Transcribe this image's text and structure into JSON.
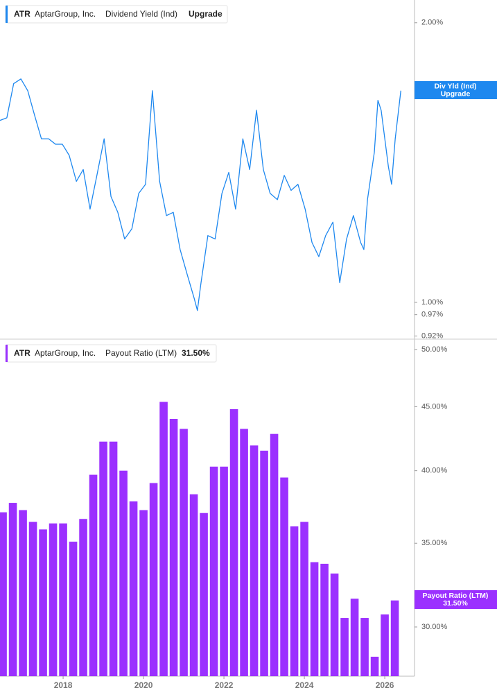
{
  "chart_data": [
    {
      "type": "line",
      "ticker": "ATR",
      "company": "AptarGroup, Inc.",
      "title": "Dividend Yield (Ind)",
      "status": "Upgrade",
      "tag_label": "Div Yld (Ind)",
      "color": "#1e88ef",
      "log": true,
      "x": [
        2016.43,
        2016.6,
        2016.77,
        2016.95,
        2017.12,
        2017.29,
        2017.46,
        2017.64,
        2017.81,
        2017.98,
        2018.15,
        2018.33,
        2018.5,
        2018.67,
        2018.84,
        2019.02,
        2019.19,
        2019.36,
        2019.53,
        2019.71,
        2019.88,
        2020.05,
        2020.22,
        2020.4,
        2020.57,
        2020.74,
        2020.91,
        2021.09,
        2021.26,
        2021.34,
        2021.43,
        2021.6,
        2021.78,
        2021.95,
        2022.12,
        2022.29,
        2022.47,
        2022.64,
        2022.81,
        2022.98,
        2023.15,
        2023.33,
        2023.5,
        2023.67,
        2023.84,
        2024.02,
        2024.19,
        2024.36,
        2024.53,
        2024.71,
        2024.88,
        2025.05,
        2025.22,
        2025.4,
        2025.48,
        2025.57,
        2025.74,
        2025.83,
        2025.91,
        2026.09,
        2026.17,
        2026.26,
        2026.4
      ],
      "values": [
        1.57,
        1.58,
        1.72,
        1.74,
        1.69,
        1.59,
        1.5,
        1.5,
        1.48,
        1.48,
        1.44,
        1.35,
        1.39,
        1.26,
        1.37,
        1.5,
        1.3,
        1.25,
        1.17,
        1.2,
        1.31,
        1.34,
        1.69,
        1.35,
        1.24,
        1.25,
        1.14,
        1.07,
        1.01,
        0.98,
        1.05,
        1.18,
        1.17,
        1.31,
        1.38,
        1.26,
        1.5,
        1.39,
        1.61,
        1.39,
        1.31,
        1.29,
        1.37,
        1.32,
        1.34,
        1.26,
        1.16,
        1.12,
        1.18,
        1.22,
        1.05,
        1.17,
        1.24,
        1.16,
        1.14,
        1.29,
        1.45,
        1.65,
        1.61,
        1.4,
        1.34,
        1.5,
        1.69
      ],
      "xlim": [
        2016.43,
        2026.74
      ],
      "ylim": [
        0.916,
        2.116
      ],
      "yticks": [
        {
          "value": 2,
          "label": "2.00%"
        },
        {
          "value": 1,
          "label": "1.00%"
        },
        {
          "value": 0.97,
          "label": "0.97%"
        },
        {
          "value": 0.92,
          "label": "0.92%"
        }
      ]
    },
    {
      "type": "bar",
      "ticker": "ATR",
      "company": "AptarGroup, Inc.",
      "title": "Payout Ratio (LTM)",
      "color": "#9b30ff",
      "log": true,
      "x": [
        2016.5,
        2016.75,
        2017,
        2017.25,
        2017.5,
        2017.75,
        2018,
        2018.25,
        2018.5,
        2018.75,
        2019,
        2019.25,
        2019.5,
        2019.75,
        2020,
        2020.25,
        2020.5,
        2020.75,
        2021,
        2021.25,
        2021.5,
        2021.75,
        2022,
        2022.25,
        2022.5,
        2022.75,
        2023,
        2023.25,
        2023.5,
        2023.75,
        2024,
        2024.25,
        2024.5,
        2024.75,
        2025,
        2025.25,
        2025.5,
        2025.75,
        2026,
        2026.25
      ],
      "values": [
        37.05,
        37.7,
        37.2,
        36.4,
        35.9,
        36.3,
        36.3,
        35.1,
        36.6,
        39.7,
        42.2,
        42.2,
        40.0,
        37.8,
        37.2,
        39.1,
        45.4,
        44.0,
        43.2,
        38.3,
        37.0,
        40.3,
        40.3,
        44.8,
        43.2,
        41.9,
        41.5,
        42.8,
        39.5,
        36.1,
        36.4,
        33.8,
        33.7,
        33.1,
        30.5,
        31.6,
        30.5,
        28.4,
        30.7,
        31.5
      ],
      "value_labels": [
        null,
        null,
        null,
        null,
        null,
        null,
        null,
        null,
        null,
        null,
        null,
        null,
        null,
        null,
        null,
        null,
        null,
        null,
        null,
        null,
        null,
        null,
        null,
        null,
        null,
        null,
        null,
        null,
        null,
        null,
        null,
        null,
        null,
        null,
        null,
        null,
        null,
        null,
        null,
        "31.50%"
      ],
      "xlim": [
        2016.43,
        2026.74
      ],
      "ylim": [
        27.4,
        50.7
      ],
      "xticks": [
        2018,
        2020,
        2022,
        2024,
        2026
      ],
      "yticks": [
        {
          "value": 50,
          "label": "50.00%"
        },
        {
          "value": 45,
          "label": "45.00%"
        },
        {
          "value": 40,
          "label": "40.00%"
        },
        {
          "value": 35,
          "label": "35.00%"
        },
        {
          "value": 30,
          "label": "30.00%"
        }
      ]
    }
  ]
}
